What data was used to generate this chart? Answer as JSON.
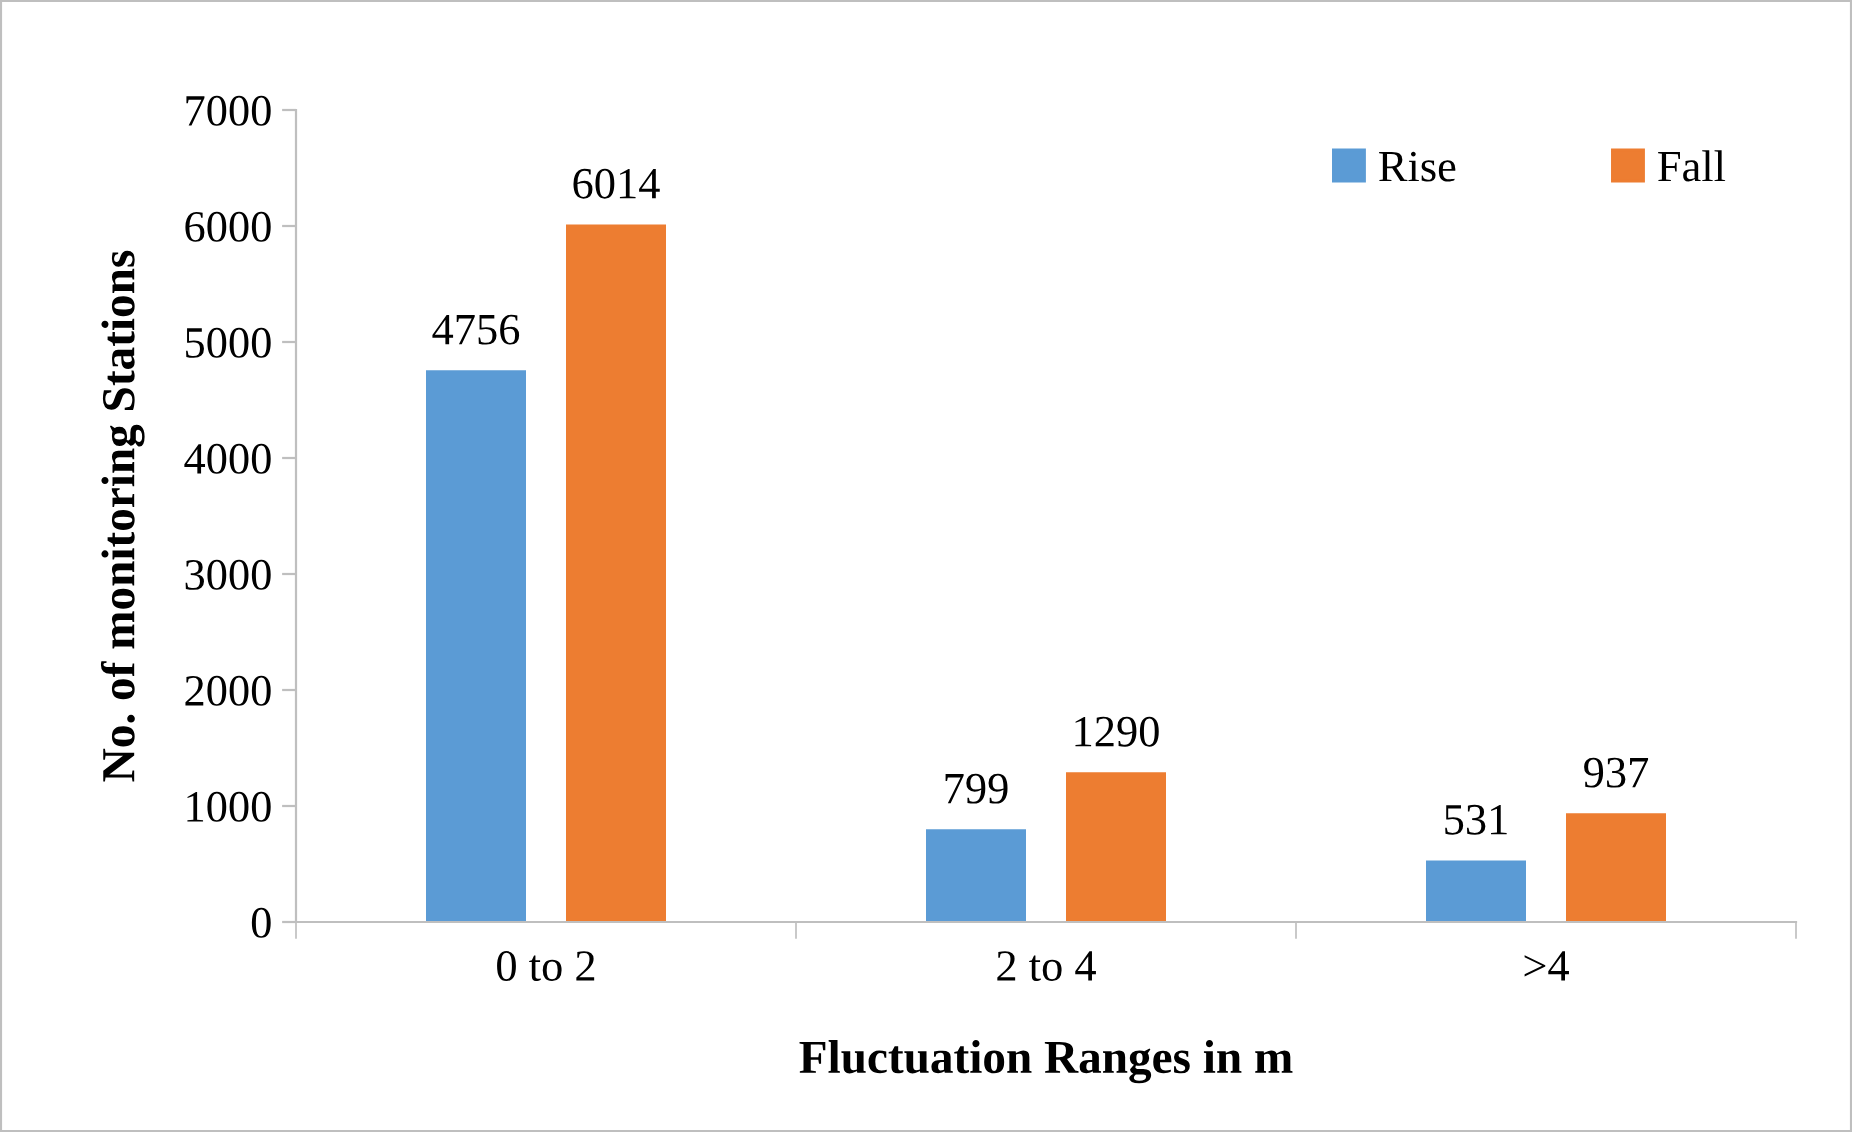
{
  "chart_data": {
    "type": "bar",
    "xlabel": "Fluctuation Ranges in m",
    "ylabel": "No. of monitoring Stations",
    "categories": [
      "0 to 2",
      "2 to 4",
      ">4"
    ],
    "series": [
      {
        "name": "Rise",
        "color": "#5b9bd5",
        "values": [
          4756,
          799,
          531
        ]
      },
      {
        "name": "Fall",
        "color": "#ed7d31",
        "values": [
          6014,
          1290,
          937
        ]
      }
    ],
    "ylim": [
      0,
      7000
    ],
    "yticks": [
      0,
      1000,
      2000,
      3000,
      4000,
      5000,
      6000,
      7000
    ],
    "data_labels": true,
    "grid": false,
    "legend": "top right"
  }
}
